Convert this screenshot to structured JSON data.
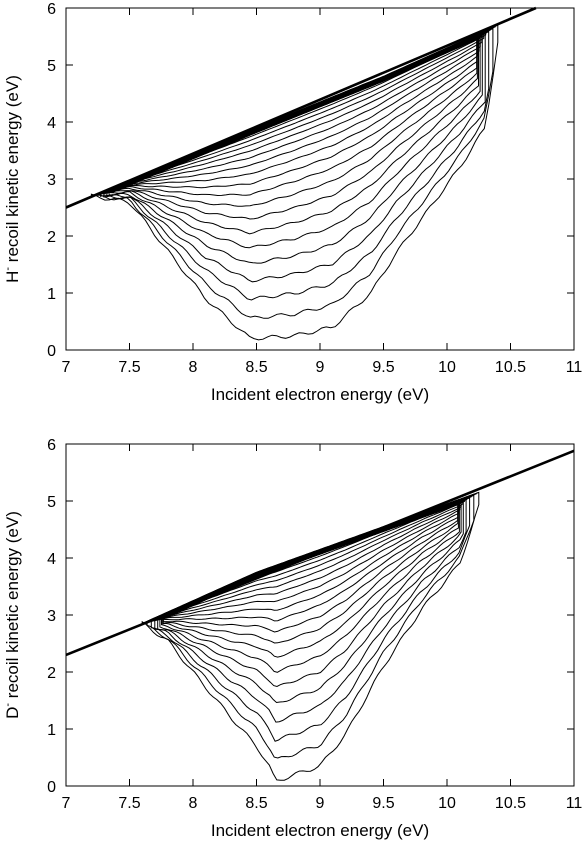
{
  "chart_data": [
    {
      "type": "contour",
      "panel": "top",
      "xlabel": "Incident electron energy (eV)",
      "ylabel_main": "H",
      "ylabel_sup": "-",
      "ylabel_rest": " recoil kinetic energy (eV)",
      "xlim": [
        7,
        11
      ],
      "ylim": [
        0,
        6
      ],
      "xticks": [
        "7",
        "7.5",
        "8",
        "8.5",
        "9",
        "9.5",
        "10",
        "10.5",
        "11"
      ],
      "yticks": [
        "0",
        "1",
        "2",
        "3",
        "4",
        "5",
        "6"
      ],
      "grid": false,
      "legend": "none",
      "threshold_line": {
        "x": [
          7.0,
          10.7
        ],
        "y": [
          2.5,
          6.0
        ]
      },
      "envelope": {
        "upper_edge": {
          "x": [
            7.2,
            8.5,
            9.5,
            10.4
          ],
          "y": [
            2.7,
            3.9,
            4.8,
            5.7
          ]
        },
        "lower_edge": {
          "x": [
            7.2,
            7.5,
            7.85,
            8.1,
            8.4,
            8.45,
            8.8,
            9.1,
            9.4,
            9.6,
            9.9,
            10.1,
            10.3,
            10.4
          ],
          "y": [
            2.7,
            2.6,
            1.6,
            0.9,
            0.3,
            0.2,
            0.25,
            0.4,
            1.0,
            1.7,
            2.6,
            3.2,
            3.9,
            5.4
          ]
        }
      },
      "contour_levels": 22
    },
    {
      "type": "contour",
      "panel": "bottom",
      "xlabel": "Incident electron energy (eV)",
      "ylabel_main": "D",
      "ylabel_sup": "-",
      "ylabel_rest": " recoil kinetic energy (eV)",
      "xlim": [
        7,
        11
      ],
      "ylim": [
        0,
        6
      ],
      "xticks": [
        "7",
        "7.5",
        "8",
        "8.5",
        "9",
        "9.5",
        "10",
        "10.5",
        "11"
      ],
      "yticks": [
        "0",
        "1",
        "2",
        "3",
        "4",
        "5",
        "6"
      ],
      "grid": false,
      "legend": "none",
      "threshold_line": {
        "x": [
          7.0,
          11.0
        ],
        "y": [
          2.3,
          5.88
        ]
      },
      "envelope": {
        "upper_edge": {
          "x": [
            7.6,
            8.5,
            9.5,
            10.25
          ],
          "y": [
            2.85,
            3.75,
            4.55,
            5.15
          ]
        },
        "lower_edge": {
          "x": [
            7.6,
            7.8,
            8.0,
            8.3,
            8.5,
            8.6,
            8.65,
            8.8,
            9.0,
            9.2,
            9.5,
            9.8,
            10.1,
            10.25
          ],
          "y": [
            2.85,
            2.55,
            2.0,
            1.2,
            0.7,
            0.35,
            0.08,
            0.2,
            0.35,
            0.9,
            2.1,
            3.1,
            3.9,
            4.9
          ]
        }
      },
      "contour_levels": 22
    }
  ]
}
